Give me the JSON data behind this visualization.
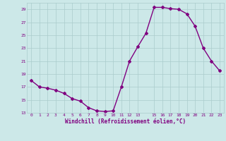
{
  "x": [
    0,
    1,
    2,
    3,
    4,
    5,
    6,
    7,
    8,
    9,
    10,
    11,
    12,
    13,
    14,
    15,
    16,
    17,
    18,
    19,
    20,
    21,
    22,
    23
  ],
  "y": [
    18.0,
    17.0,
    16.8,
    16.5,
    16.0,
    15.2,
    14.8,
    13.8,
    13.3,
    13.2,
    13.3,
    17.0,
    21.0,
    23.2,
    25.3,
    29.3,
    29.3,
    29.1,
    29.0,
    28.3,
    26.4,
    23.0,
    21.0,
    19.5
  ],
  "line_color": "#800080",
  "marker": "D",
  "marker_size": 2,
  "bg_color": "#cce8e8",
  "grid_color": "#aacccc",
  "xlabel": "Windchill (Refroidissement éolien,°C)",
  "xlabel_color": "#800080",
  "tick_color": "#800080",
  "ylim": [
    13,
    30
  ],
  "yticks": [
    13,
    15,
    17,
    19,
    21,
    23,
    25,
    27,
    29
  ],
  "xticks": [
    0,
    1,
    2,
    3,
    4,
    5,
    6,
    7,
    8,
    9,
    10,
    11,
    12,
    13,
    15,
    16,
    17,
    18,
    19,
    20,
    21,
    22,
    23
  ],
  "line_width": 1.0,
  "xlim_left": -0.5,
  "xlim_right": 23.5
}
